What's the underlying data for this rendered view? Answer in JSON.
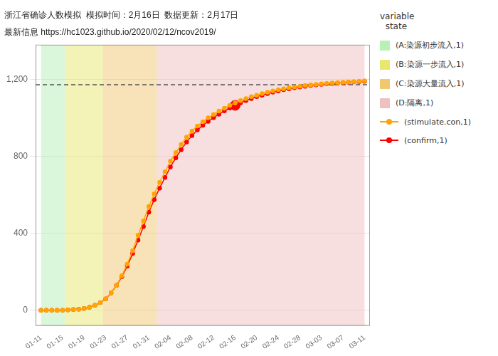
{
  "chart_data": {
    "type": "line",
    "title": "浙江省确诊人数模拟  模拟时间：2月16日  数据更新：2月17日",
    "subtitle": "最新信息 https://hc1023.github.io/2020/02/12/ncov2019/",
    "legend_title": "variable\n  state",
    "legend": "right",
    "grid": "y",
    "categories": [
      "01-11",
      null,
      null,
      null,
      "01-15",
      null,
      null,
      null,
      "01-19",
      null,
      null,
      null,
      "01-23",
      null,
      null,
      null,
      "01-27",
      null,
      null,
      null,
      "01-31",
      null,
      null,
      null,
      "02-04",
      null,
      null,
      null,
      "02-08",
      null,
      null,
      null,
      "02-12",
      null,
      null,
      null,
      "02-16",
      null,
      null,
      null,
      "02-20",
      null,
      null,
      null,
      "02-24",
      null,
      null,
      null,
      "02-28",
      null,
      null,
      null,
      "03-03",
      null,
      null,
      null,
      "03-07",
      null,
      null,
      null,
      "03-11"
    ],
    "series": [
      {
        "name": "(stimulate.con,1)",
        "color": "#FFA500",
        "marker": "circle",
        "line_style": "solid",
        "values": [
          0,
          0,
          0,
          0,
          0,
          2,
          4,
          6,
          10,
          16,
          26,
          40,
          60,
          90,
          130,
          180,
          240,
          310,
          390,
          465,
          540,
          605,
          665,
          720,
          775,
          820,
          862,
          900,
          932,
          958,
          980,
          1000,
          1018,
          1035,
          1050,
          1065,
          1078,
          1090,
          1100,
          1110,
          1118,
          1126,
          1133,
          1140,
          1146,
          1151,
          1156,
          1160,
          1164,
          1168,
          1171,
          1174,
          1177,
          1179,
          1181,
          1183,
          1185,
          1187,
          1188,
          1190,
          1192
        ]
      },
      {
        "name": "(confirm,1)",
        "color": "#FF0000",
        "marker": "circle",
        "line_style": "solid",
        "values": [
          0,
          0,
          0,
          0,
          0,
          2,
          4,
          6,
          10,
          16,
          26,
          40,
          60,
          90,
          130,
          175,
          230,
          295,
          365,
          435,
          510,
          575,
          635,
          690,
          745,
          792,
          835,
          874,
          908,
          937,
          961,
          982,
          1001,
          1019,
          1036,
          1051,
          1065,
          1078,
          1090,
          1100,
          1110,
          1118,
          1126,
          1133,
          1140,
          1146,
          1151,
          1156,
          1160,
          1164,
          1168,
          1171,
          1174,
          1177,
          1179,
          1181,
          1183,
          1185,
          1187,
          1188,
          1190
        ]
      }
    ],
    "zones": [
      {
        "label": "(A:染源初步流入,1)",
        "color": "#b8f0b8",
        "start": 0,
        "end": 4.5
      },
      {
        "label": "(B:染源一步流入,1)",
        "color": "#e8e870",
        "start": 4.5,
        "end": 11.5
      },
      {
        "label": "(C:染源大量流入,1)",
        "color": "#f0c870",
        "start": 11.5,
        "end": 21.5
      },
      {
        "label": "(D:隔离,1)",
        "color": "#f0c0c0",
        "start": 21.5,
        "end": 60
      }
    ],
    "reference_line": 1172,
    "highlight": {
      "category": "02-16",
      "value": 1065,
      "series": "(confirm,1)"
    },
    "ylim": [
      -80,
      1380
    ],
    "yticks": [
      0,
      400,
      800,
      1200
    ]
  }
}
